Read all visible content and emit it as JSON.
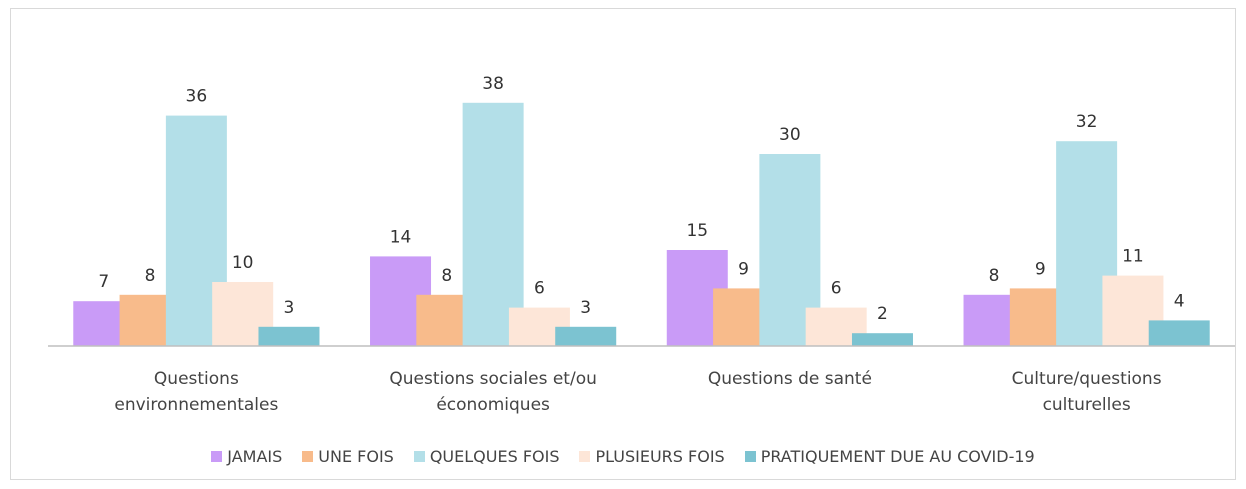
{
  "chart_data": {
    "type": "bar",
    "categories": [
      "Questions environnementales",
      "Questions sociales et/ou économiques",
      "Questions de santé",
      "Culture/questions culturelles"
    ],
    "series": [
      {
        "name": "JAMAIS",
        "color": "#c99bf7",
        "values": [
          7,
          14,
          15,
          8
        ]
      },
      {
        "name": "UNE FOIS",
        "color": "#f8bb8b",
        "values": [
          8,
          8,
          9,
          9
        ]
      },
      {
        "name": "QUELQUES FOIS",
        "color": "#b3dfe8",
        "values": [
          36,
          38,
          30,
          32
        ]
      },
      {
        "name": "PLUSIEURS FOIS",
        "color": "#fde6d8",
        "values": [
          10,
          6,
          6,
          11
        ]
      },
      {
        "name": "PRATIQUEMENT DUE AU COVID-19",
        "color": "#7cc3d1",
        "values": [
          3,
          3,
          2,
          4
        ]
      }
    ],
    "ylim": [
      0,
      40
    ]
  }
}
